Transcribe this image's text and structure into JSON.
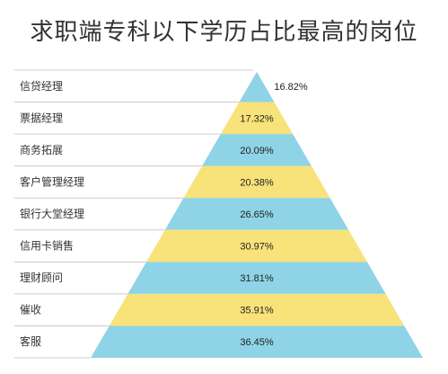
{
  "title": "求职端专科以下学历占比最高的岗位",
  "chart_data": {
    "type": "bar",
    "title": "求职端专科以下学历占比最高的岗位",
    "categories": [
      "信贷经理",
      "票据经理",
      "商务拓展",
      "客户管理经理",
      "银行大堂经理",
      "信用卡销售",
      "理财顾问",
      "催收",
      "客服"
    ],
    "values": [
      16.82,
      17.32,
      20.09,
      20.38,
      26.65,
      30.97,
      31.81,
      35.91,
      36.45
    ],
    "value_labels": [
      "16.82%",
      "17.32%",
      "20.09%",
      "20.38%",
      "26.65%",
      "30.97%",
      "31.81%",
      "35.91%",
      "36.45%"
    ],
    "unit": "%",
    "colors": [
      "#8fd3e6",
      "#f8e27a"
    ]
  }
}
